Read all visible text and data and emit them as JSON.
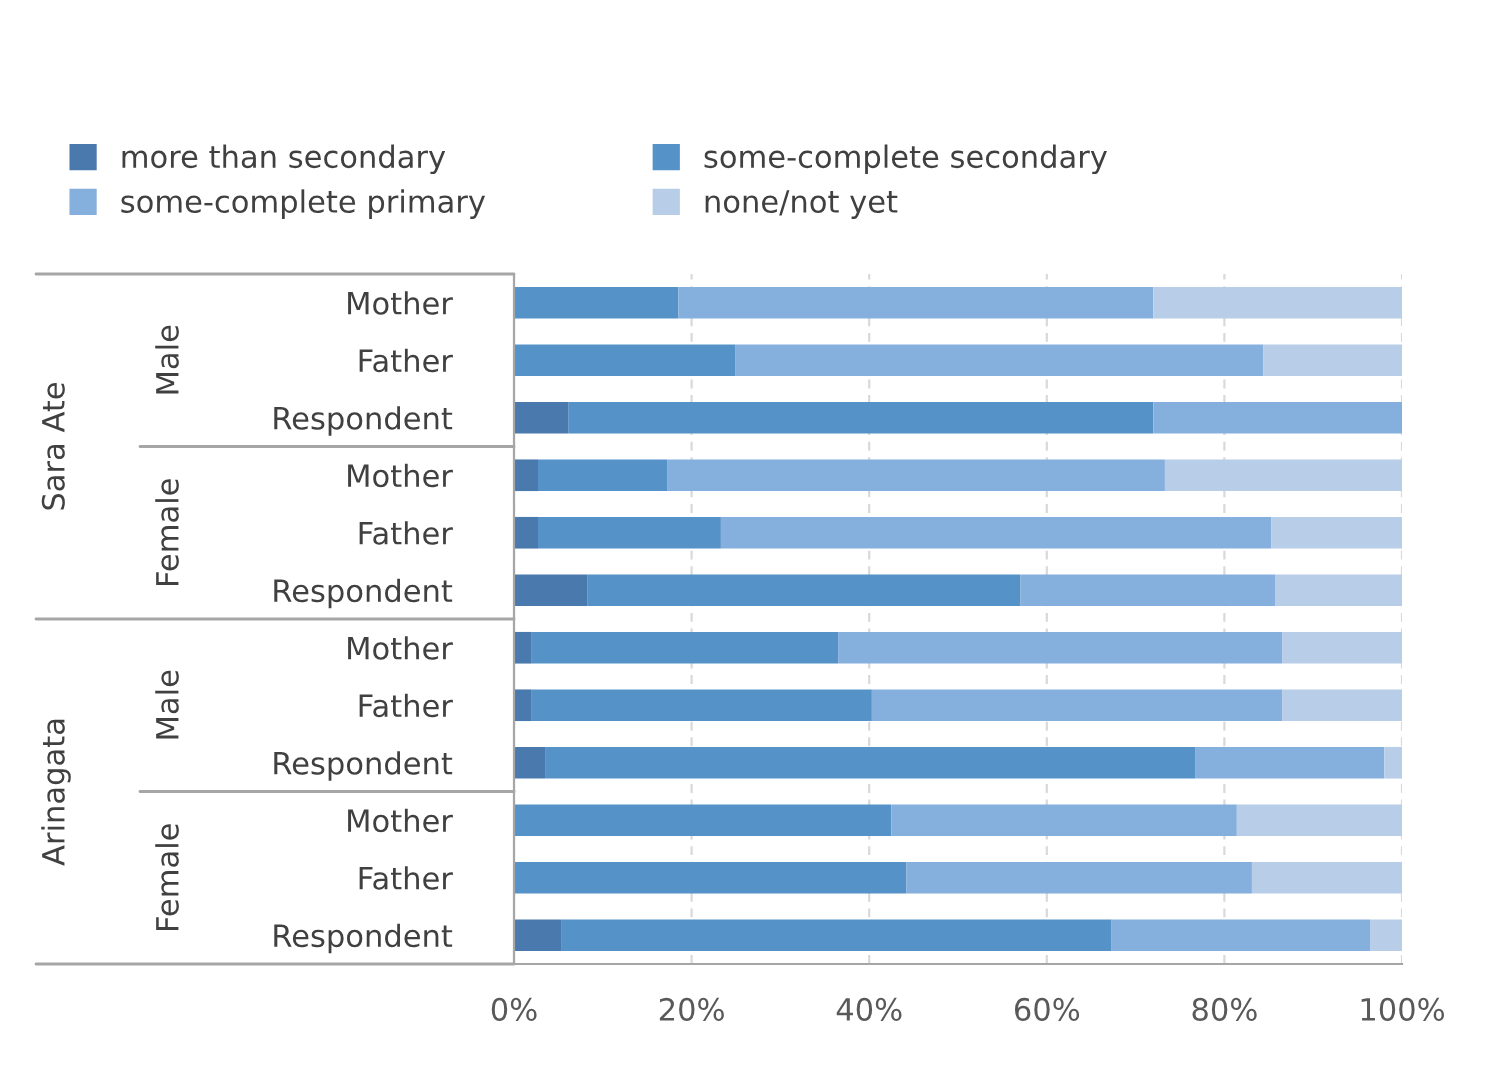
{
  "chart_data": {
    "type": "bar",
    "orientation": "horizontal",
    "stacked": true,
    "categories": [
      "Mother",
      "Father",
      "Respondent",
      "Mother",
      "Father",
      "Respondent",
      "Mother",
      "Father",
      "Respondent",
      "Mother",
      "Father",
      "Respondent"
    ],
    "series": [
      {
        "name": "more than secondary",
        "color": "#4a7aad",
        "values": [
          0,
          0,
          6.1,
          2.7,
          2.7,
          8.3,
          2.0,
          2.0,
          3.5,
          0,
          0,
          5.3
        ]
      },
      {
        "name": "some-complete secondary",
        "color": "#5592c8",
        "values": [
          18.5,
          24.9,
          65.9,
          14.6,
          20.6,
          48.7,
          34.5,
          38.3,
          73.2,
          42.5,
          44.2,
          62.0
        ]
      },
      {
        "name": "some-complete primary",
        "color": "#85afdc",
        "values": [
          53.5,
          59.5,
          28.0,
          56.0,
          62.0,
          28.7,
          50.0,
          46.2,
          21.3,
          38.9,
          38.9,
          29.1
        ]
      },
      {
        "name": "none/not yet",
        "color": "#b8cde8",
        "values": [
          28.0,
          15.6,
          0,
          26.7,
          14.7,
          14.3,
          13.5,
          13.5,
          2.0,
          18.6,
          16.9,
          3.6
        ]
      }
    ],
    "xlim": [
      0,
      100
    ],
    "xticks": [
      {
        "value": 0,
        "label": "0%"
      },
      {
        "value": 20,
        "label": "20%"
      },
      {
        "value": 40,
        "label": "40%"
      },
      {
        "value": 60,
        "label": "60%"
      },
      {
        "value": 80,
        "label": "80%"
      },
      {
        "value": 100,
        "label": "100%"
      }
    ],
    "annotations": [
      "Sara Ate",
      "Male",
      "Female",
      "Arinagata",
      "Male",
      "Female"
    ],
    "grid": "x",
    "legend": "top"
  }
}
